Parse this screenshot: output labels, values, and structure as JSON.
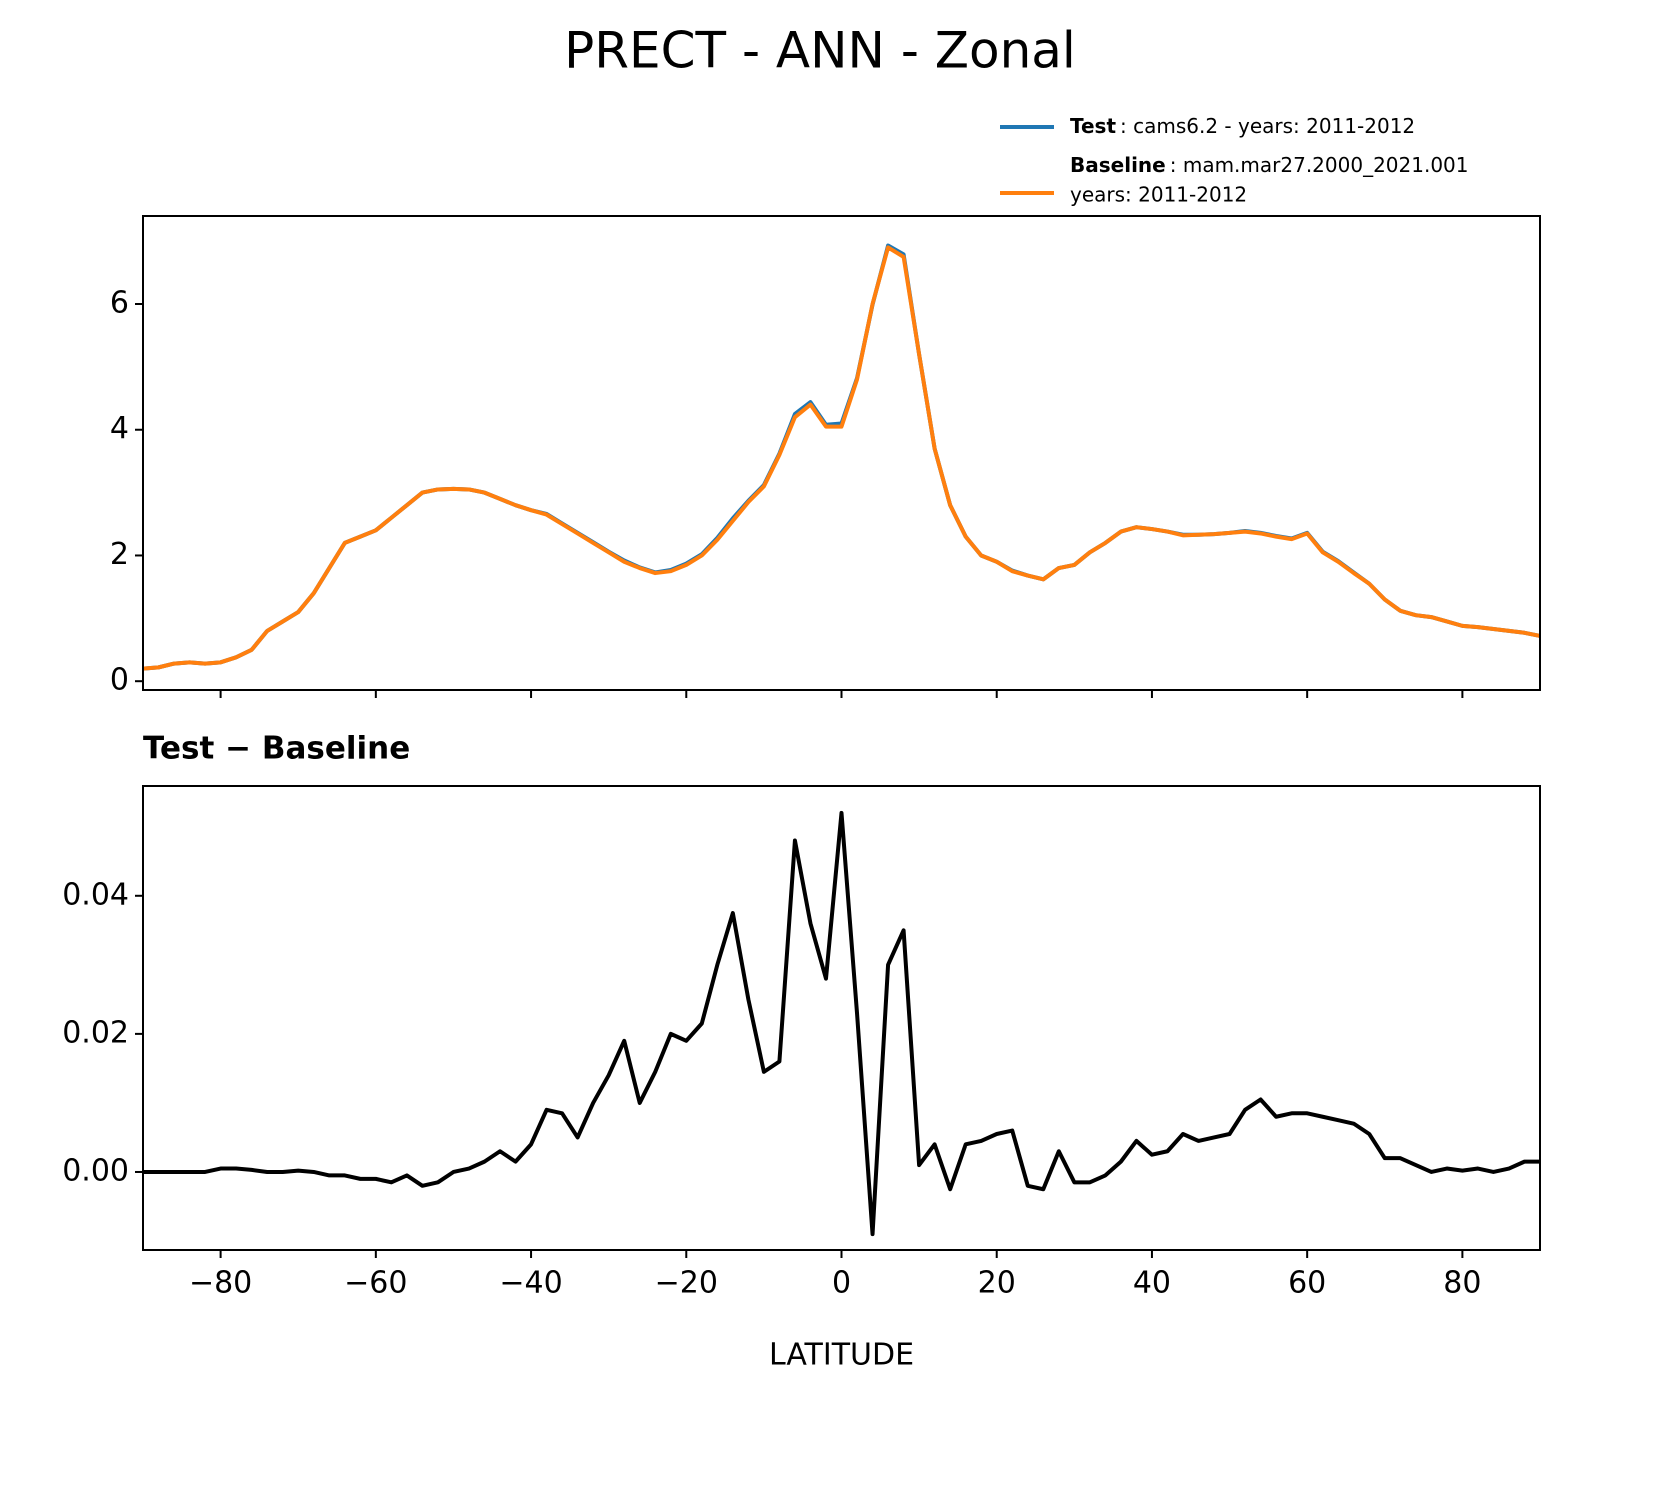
{
  "chart_data": [
    {
      "type": "line",
      "title": "PRECT - ANN - Zonal",
      "x": [
        -90,
        -88,
        -86,
        -84,
        -82,
        -80,
        -78,
        -76,
        -74,
        -72,
        -70,
        -68,
        -66,
        -64,
        -62,
        -60,
        -58,
        -56,
        -54,
        -52,
        -50,
        -48,
        -46,
        -44,
        -42,
        -40,
        -38,
        -36,
        -34,
        -32,
        -30,
        -28,
        -26,
        -24,
        -22,
        -20,
        -18,
        -16,
        -14,
        -12,
        -10,
        -8,
        -6,
        -4,
        -2,
        0,
        2,
        4,
        6,
        8,
        10,
        12,
        14,
        16,
        18,
        20,
        22,
        24,
        26,
        28,
        30,
        32,
        34,
        36,
        38,
        40,
        42,
        44,
        46,
        48,
        50,
        52,
        54,
        56,
        58,
        60,
        62,
        64,
        66,
        68,
        70,
        72,
        74,
        76,
        78,
        80,
        82,
        84,
        86,
        88,
        90
      ],
      "series": [
        {
          "name": "Test",
          "label": ": cams6.2 - years: 2011-2012",
          "color": "#1f77b4",
          "values": [
            0.2,
            0.22,
            0.28,
            0.3,
            0.28,
            0.3,
            0.38,
            0.5,
            0.8,
            0.95,
            1.1,
            1.4,
            1.8,
            2.2,
            2.3,
            2.4,
            2.6,
            2.8,
            3.0,
            3.05,
            3.06,
            3.05,
            3.0,
            2.9,
            2.8,
            2.72,
            2.66,
            2.51,
            2.36,
            2.21,
            2.06,
            1.92,
            1.81,
            1.73,
            1.77,
            1.87,
            2.02,
            2.28,
            2.59,
            2.87,
            3.12,
            3.62,
            4.25,
            4.44,
            4.08,
            4.1,
            4.82,
            5.99,
            6.93,
            6.79,
            5.2,
            3.7,
            2.8,
            2.3,
            2.0,
            1.9,
            1.76,
            1.68,
            1.62,
            1.8,
            1.85,
            2.05,
            2.2,
            2.38,
            2.45,
            2.42,
            2.38,
            2.33,
            2.33,
            2.34,
            2.36,
            2.39,
            2.36,
            2.31,
            2.27,
            2.36,
            2.06,
            1.91,
            1.73,
            1.55,
            1.3,
            1.12,
            1.05,
            1.02,
            0.95,
            0.88,
            0.86,
            0.83,
            0.8,
            0.77,
            0.72
          ]
        },
        {
          "name": "Baseline",
          "label_lines": [
            ": mam.mar27.2000_2021.001",
            "years: 2011-2012"
          ],
          "color": "#ff7f0e",
          "values": [
            0.2,
            0.22,
            0.28,
            0.3,
            0.28,
            0.3,
            0.38,
            0.5,
            0.8,
            0.95,
            1.1,
            1.4,
            1.8,
            2.2,
            2.3,
            2.4,
            2.6,
            2.8,
            3.0,
            3.05,
            3.06,
            3.05,
            3.0,
            2.9,
            2.8,
            2.72,
            2.65,
            2.5,
            2.35,
            2.2,
            2.05,
            1.9,
            1.8,
            1.72,
            1.75,
            1.85,
            2.0,
            2.25,
            2.55,
            2.85,
            3.1,
            3.6,
            4.2,
            4.4,
            4.05,
            4.05,
            4.8,
            6.0,
            6.9,
            6.75,
            5.2,
            3.7,
            2.8,
            2.3,
            2.0,
            1.9,
            1.75,
            1.68,
            1.62,
            1.8,
            1.85,
            2.05,
            2.2,
            2.38,
            2.45,
            2.42,
            2.38,
            2.32,
            2.33,
            2.34,
            2.36,
            2.38,
            2.35,
            2.3,
            2.26,
            2.35,
            2.05,
            1.9,
            1.72,
            1.55,
            1.3,
            1.12,
            1.05,
            1.02,
            0.95,
            0.88,
            0.86,
            0.83,
            0.8,
            0.77,
            0.72
          ]
        }
      ],
      "xlim": [
        -90,
        90
      ],
      "xticks": [
        -80,
        -60,
        -40,
        -20,
        0,
        20,
        40,
        60,
        80
      ],
      "ylim": [
        -0.14,
        7.4
      ],
      "yticks": [
        0,
        2,
        4,
        6
      ]
    },
    {
      "type": "line",
      "title": "Test − Baseline",
      "x_label": "LATITUDE",
      "x": [
        -90,
        -88,
        -86,
        -84,
        -82,
        -80,
        -78,
        -76,
        -74,
        -72,
        -70,
        -68,
        -66,
        -64,
        -62,
        -60,
        -58,
        -56,
        -54,
        -52,
        -50,
        -48,
        -46,
        -44,
        -42,
        -40,
        -38,
        -36,
        -34,
        -32,
        -30,
        -28,
        -26,
        -24,
        -22,
        -20,
        -18,
        -16,
        -14,
        -12,
        -10,
        -8,
        -6,
        -4,
        -2,
        0,
        2,
        4,
        6,
        8,
        10,
        12,
        14,
        16,
        18,
        20,
        22,
        24,
        26,
        28,
        30,
        32,
        34,
        36,
        38,
        40,
        42,
        44,
        46,
        48,
        50,
        52,
        54,
        56,
        58,
        60,
        62,
        64,
        66,
        68,
        70,
        72,
        74,
        76,
        78,
        80,
        82,
        84,
        86,
        88,
        90
      ],
      "series": [
        {
          "name": "Test − Baseline",
          "color": "#000000",
          "values": [
            0,
            0,
            0,
            0,
            0,
            0.0005,
            0.0005,
            0.0003,
            0,
            0,
            0.0002,
            0,
            -0.0005,
            -0.0005,
            -0.001,
            -0.001,
            -0.0015,
            -0.0005,
            -0.002,
            -0.0015,
            0,
            0.0005,
            0.0015,
            0.003,
            0.0015,
            0.004,
            0.009,
            0.0085,
            0.005,
            0.01,
            0.014,
            0.019,
            0.01,
            0.0145,
            0.02,
            0.019,
            0.0215,
            0.03,
            0.0375,
            0.025,
            0.0145,
            0.016,
            0.048,
            0.036,
            0.028,
            0.052,
            0.023,
            -0.009,
            0.03,
            0.035,
            0.001,
            0.004,
            -0.0025,
            0.004,
            0.0045,
            0.0055,
            0.006,
            -0.002,
            -0.0025,
            0.003,
            -0.0015,
            -0.0015,
            -0.0005,
            0.0015,
            0.0045,
            0.0025,
            0.003,
            0.0055,
            0.0045,
            0.005,
            0.0055,
            0.009,
            0.0105,
            0.008,
            0.0085,
            0.0085,
            0.008,
            0.0075,
            0.007,
            0.0055,
            0.002,
            0.002,
            0.001,
            0,
            0.0005,
            0.0002,
            0.0005,
            0,
            0.0005,
            0.0015,
            0.0015
          ]
        }
      ],
      "xlim": [
        -90,
        90
      ],
      "xticks": [
        {
          "value": -80,
          "label": "−80"
        },
        {
          "value": -60,
          "label": "−60"
        },
        {
          "value": -40,
          "label": "−40"
        },
        {
          "value": -20,
          "label": "−20"
        },
        0,
        20,
        40,
        60,
        80
      ],
      "ylim": [
        -0.0113,
        0.0559
      ],
      "yticks": [
        {
          "value": 0,
          "label": "0.00"
        },
        {
          "value": 0.02,
          "label": "0.02"
        },
        {
          "value": 0.04,
          "label": "0.04"
        }
      ]
    }
  ]
}
